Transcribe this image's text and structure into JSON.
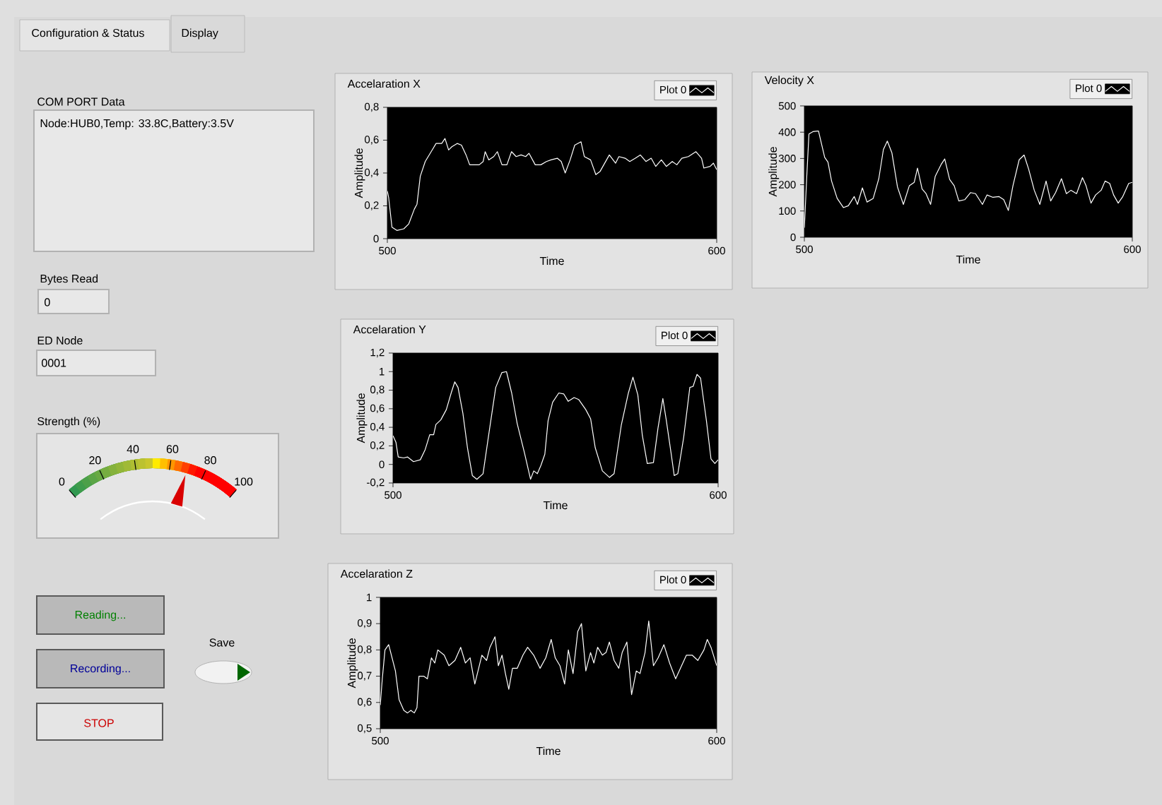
{
  "chart_data": [
    {
      "type": "other",
      "annotations": [
        "Configuration & Status",
        "Display",
        "COM PORT Data",
        "Node:HUB0,Temp: 33.8C,Battery:3.5V",
        "Bytes Read",
        "0",
        "ED Node",
        "0001",
        "Reading...",
        "Recording...",
        "Save",
        "STOP"
      ]
    },
    {
      "type": "other",
      "title": "Strength (%)",
      "annotations": [
        "0",
        "20",
        "40",
        "60",
        "80",
        "100"
      ]
    },
    {
      "type": "line",
      "title": "Accelaration X",
      "xlabel": "Time",
      "ylabel": "Amplitude",
      "legend": "top right",
      "xlim": [
        500,
        600
      ],
      "ylim": [
        0,
        0.8
      ],
      "xticks": [
        500,
        600
      ],
      "yticks": [
        0,
        {
          "value": 0.2,
          "label": "0,2"
        },
        {
          "value": 0.4,
          "label": "0,4"
        },
        {
          "value": 0.6,
          "label": "0,6"
        },
        {
          "value": 0.8,
          "label": "0,8"
        }
      ],
      "x": [
        500,
        500.4,
        501.4,
        502.9,
        505,
        506.5,
        508.2,
        509,
        510,
        511.5,
        513.6,
        514.8,
        516.5,
        517.5,
        518.6,
        519.6,
        521.2,
        522.5,
        523.9,
        525,
        526.5,
        527.9,
        529.1,
        529.7,
        530.8,
        532.3,
        533.4,
        534.8,
        536.3,
        537.7,
        539.1,
        540.6,
        542,
        543,
        544.9,
        546.6,
        548.3,
        549.7,
        551.6,
        552.8,
        554,
        555.5,
        556.9,
        558.8,
        559.8,
        561.7,
        563.3,
        564.6,
        567.4,
        569.3,
        570.3,
        572.2,
        573.6,
        575.3,
        576.8,
        578.5,
        580.1,
        581.5,
        583.2,
        584.7,
        586.5,
        587.9,
        589.4,
        591.4,
        593.7,
        595.4,
        596.1,
        598,
        599,
        600
      ],
      "series": [
        {
          "name": "Plot 0",
          "color": "#ffffff",
          "values": [
            0.29,
            0.25,
            0.07,
            0.05,
            0.06,
            0.09,
            0.18,
            0.21,
            0.38,
            0.47,
            0.54,
            0.58,
            0.58,
            0.61,
            0.54,
            0.56,
            0.58,
            0.57,
            0.51,
            0.45,
            0.45,
            0.45,
            0.47,
            0.53,
            0.48,
            0.5,
            0.53,
            0.45,
            0.45,
            0.53,
            0.5,
            0.51,
            0.5,
            0.52,
            0.45,
            0.45,
            0.47,
            0.48,
            0.49,
            0.47,
            0.4,
            0.48,
            0.57,
            0.59,
            0.5,
            0.48,
            0.39,
            0.41,
            0.51,
            0.46,
            0.5,
            0.49,
            0.47,
            0.49,
            0.51,
            0.47,
            0.49,
            0.44,
            0.48,
            0.44,
            0.47,
            0.45,
            0.49,
            0.5,
            0.53,
            0.49,
            0.43,
            0.44,
            0.46,
            0.42
          ]
        }
      ]
    },
    {
      "type": "line",
      "title": "Velocity X",
      "xlabel": "Time",
      "ylabel": "Amplitude",
      "legend": "top right",
      "xlim": [
        500,
        600
      ],
      "ylim": [
        0,
        500
      ],
      "xticks": [
        500,
        600
      ],
      "yticks": [
        0,
        100,
        200,
        300,
        400,
        500
      ],
      "x": [
        500,
        500.7,
        501.4,
        502.6,
        504.3,
        506.2,
        507.2,
        508.3,
        510,
        511.9,
        513.4,
        515.2,
        516.2,
        517.7,
        519.1,
        521,
        522.7,
        524.1,
        525.3,
        526.7,
        528.4,
        530.2,
        532,
        533.5,
        534.5,
        535.9,
        537.1,
        538.5,
        539.9,
        541.7,
        542.8,
        544.3,
        545.7,
        547.1,
        548.9,
        550.7,
        552.2,
        554.3,
        555.7,
        557.5,
        559.3,
        560.8,
        562.2,
        563.6,
        565.5,
        567,
        568.4,
        570.1,
        571.8,
        573.7,
        575.1,
        576.6,
        578.4,
        579.9,
        581.3,
        583,
        584.8,
        585.9,
        587.4,
        588.8,
        590.5,
        591.7,
        593.1,
        594.3,
        595.7,
        597.1,
        598.9,
        600
      ],
      "series": [
        {
          "name": "Plot 0",
          "color": "#ffffff",
          "values": [
            36,
            223,
            393,
            402,
            405,
            304,
            286,
            214,
            148,
            113,
            120,
            155,
            125,
            188,
            134,
            148,
            223,
            334,
            366,
            321,
            191,
            125,
            196,
            209,
            263,
            184,
            166,
            125,
            232,
            277,
            298,
            220,
            196,
            138,
            143,
            170,
            166,
            125,
            161,
            152,
            155,
            143,
            102,
            196,
            295,
            313,
            259,
            179,
            125,
            214,
            138,
            170,
            223,
            166,
            179,
            166,
            227,
            196,
            130,
            161,
            179,
            214,
            205,
            161,
            130,
            155,
            205,
            209
          ]
        }
      ]
    },
    {
      "type": "line",
      "title": "Accelaration Y",
      "xlabel": "Time",
      "ylabel": "Amplitude",
      "legend": "top right",
      "xlim": [
        500,
        600
      ],
      "ylim": [
        -0.2,
        1.2
      ],
      "xticks": [
        500,
        600
      ],
      "yticks": [
        {
          "value": -0.2,
          "label": "-0,2"
        },
        0,
        {
          "value": 0.2,
          "label": "0,2"
        },
        {
          "value": 0.4,
          "label": "0,4"
        },
        {
          "value": 0.6,
          "label": "0,6"
        },
        {
          "value": 0.8,
          "label": "0,8"
        },
        1,
        {
          "value": 1.2,
          "label": "1,2"
        }
      ],
      "x": [
        500,
        500.9,
        501.6,
        503.3,
        504.5,
        506.3,
        508.4,
        509.9,
        511.3,
        512.5,
        513.2,
        514.7,
        516.4,
        517.9,
        519,
        520,
        521.5,
        522.9,
        524.4,
        525.8,
        527.7,
        529.4,
        531.6,
        533.5,
        534.9,
        536.5,
        538.2,
        540.4,
        542.3,
        543.3,
        544.4,
        545.5,
        546.7,
        547.7,
        549.1,
        551,
        552.5,
        553.9,
        555.7,
        557.1,
        559.3,
        560.8,
        562.2,
        564.4,
        566.6,
        568,
        570.2,
        572.4,
        573.8,
        575.3,
        576.7,
        578.2,
        580.1,
        581.5,
        583,
        584,
        585.5,
        586.5,
        587.6,
        589.4,
        591.3,
        592.3,
        593.5,
        594.6,
        596.4,
        597.8,
        599,
        600
      ],
      "series": [
        {
          "name": "Plot 0",
          "color": "#ffffff",
          "values": [
            0.31,
            0.24,
            0.08,
            0.07,
            0.08,
            0.03,
            0.05,
            0.16,
            0.32,
            0.32,
            0.43,
            0.48,
            0.59,
            0.77,
            0.89,
            0.83,
            0.55,
            0.18,
            -0.12,
            -0.16,
            -0.1,
            0.31,
            0.83,
            0.99,
            1.0,
            0.77,
            0.44,
            0.13,
            -0.16,
            -0.07,
            -0.1,
            -0.01,
            0.11,
            0.47,
            0.67,
            0.77,
            0.76,
            0.68,
            0.72,
            0.7,
            0.59,
            0.49,
            0.18,
            -0.07,
            -0.14,
            -0.1,
            0.42,
            0.77,
            0.94,
            0.75,
            0.31,
            0.01,
            0.02,
            0.39,
            0.71,
            0.49,
            0.13,
            -0.12,
            -0.1,
            0.29,
            0.83,
            0.84,
            0.97,
            0.93,
            0.47,
            0.06,
            0.01,
            0.05
          ]
        }
      ]
    },
    {
      "type": "line",
      "title": "Accelaration Z",
      "xlabel": "Time",
      "ylabel": "Amplitude",
      "legend": "top right",
      "xlim": [
        500,
        600
      ],
      "ylim": [
        0.5,
        1
      ],
      "xticks": [
        500,
        600
      ],
      "yticks": [
        {
          "value": 0.5,
          "label": "0,5"
        },
        {
          "value": 0.6,
          "label": "0,6"
        },
        {
          "value": 0.7,
          "label": "0,7"
        },
        {
          "value": 0.8,
          "label": "0,8"
        },
        {
          "value": 0.9,
          "label": "0,9"
        },
        1
      ],
      "x": [
        500,
        500.6,
        501.4,
        502.5,
        503.5,
        504.5,
        505.6,
        507,
        508.1,
        509.1,
        510.1,
        510.9,
        511.5,
        512.9,
        514,
        515.2,
        516.2,
        517.1,
        519,
        520.4,
        522.2,
        523.9,
        525.3,
        526.7,
        528.1,
        530.2,
        531.6,
        532.6,
        534.1,
        535.1,
        536.2,
        537.2,
        538.2,
        539.3,
        540.7,
        542.4,
        543.8,
        545.6,
        547.5,
        549.2,
        550.8,
        552,
        553.4,
        554.8,
        555.9,
        557.3,
        558.7,
        559.8,
        561.1,
        562.5,
        563.5,
        564.6,
        566,
        567.1,
        568.1,
        569.5,
        570.9,
        571.9,
        573.3,
        574.7,
        576.1,
        577.2,
        578.7,
        579.8,
        581.2,
        582.6,
        584.3,
        586,
        587.8,
        589.2,
        591,
        592.7,
        594.4,
        596.2,
        597.2,
        598.3,
        600
      ],
      "series": [
        {
          "name": "Plot 0",
          "color": "#ffffff",
          "values": [
            0.59,
            0.69,
            0.8,
            0.82,
            0.77,
            0.72,
            0.61,
            0.57,
            0.56,
            0.57,
            0.56,
            0.58,
            0.7,
            0.7,
            0.69,
            0.77,
            0.75,
            0.8,
            0.78,
            0.74,
            0.76,
            0.81,
            0.75,
            0.77,
            0.67,
            0.78,
            0.76,
            0.81,
            0.85,
            0.74,
            0.78,
            0.71,
            0.65,
            0.73,
            0.73,
            0.78,
            0.81,
            0.78,
            0.73,
            0.77,
            0.84,
            0.77,
            0.74,
            0.67,
            0.8,
            0.71,
            0.87,
            0.9,
            0.72,
            0.79,
            0.75,
            0.81,
            0.78,
            0.79,
            0.83,
            0.76,
            0.73,
            0.79,
            0.83,
            0.63,
            0.72,
            0.71,
            0.79,
            0.91,
            0.74,
            0.77,
            0.82,
            0.75,
            0.69,
            0.73,
            0.78,
            0.78,
            0.76,
            0.8,
            0.84,
            0.81,
            0.74
          ]
        }
      ]
    }
  ]
}
